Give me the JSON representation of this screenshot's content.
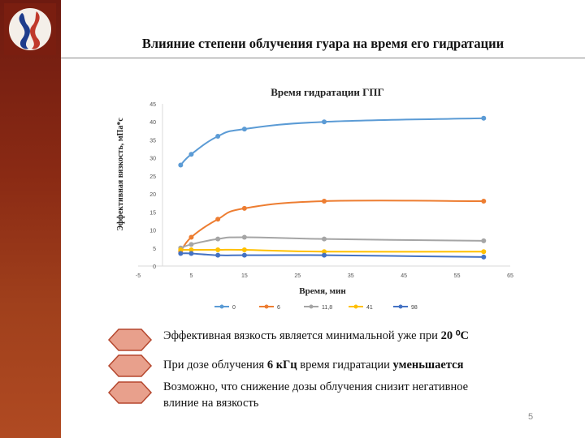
{
  "slide": {
    "title": "Влияние степени облучения гуара на время его гидратации",
    "page_number": "5",
    "colors": {
      "sidebar": "#8a2a14",
      "bullet": "#e8a08c"
    }
  },
  "bullets": [
    {
      "parts": [
        {
          "text": "Эффективная вязкость является минимальной уже при ",
          "bold": false
        },
        {
          "text": "20 ⁰С",
          "bold": true
        }
      ]
    },
    {
      "parts": [
        {
          "text": "При дозе облучения  ",
          "bold": false
        },
        {
          "text": "6 кГц",
          "bold": true
        },
        {
          "text": " время гидратации ",
          "bold": false
        },
        {
          "text": "уменьшается",
          "bold": true
        }
      ]
    },
    {
      "parts": [
        {
          "text": "Возможно, что снижение дозы облучения снизит негативное влиние на вязкость",
          "bold": false
        }
      ]
    }
  ],
  "chart_data": {
    "type": "line",
    "title": "Время гидратации ГПГ",
    "xlabel": "Время, мин",
    "ylabel": "Эффективная вязкость, мПа*с",
    "xlim": [
      -5,
      65
    ],
    "ylim": [
      0,
      45
    ],
    "xticks": [
      -5,
      5,
      15,
      25,
      35,
      45,
      55,
      65
    ],
    "yticks": [
      0,
      5,
      10,
      15,
      20,
      25,
      30,
      35,
      40,
      45
    ],
    "grid": false,
    "legend_position": "bottom",
    "series": [
      {
        "name": "0",
        "color": "#5b9bd5",
        "x": [
          3,
          5,
          10,
          15,
          30,
          60
        ],
        "y": [
          28,
          31,
          36,
          38,
          40,
          41
        ]
      },
      {
        "name": "6",
        "color": "#ed7d31",
        "x": [
          3,
          5,
          10,
          15,
          30,
          60
        ],
        "y": [
          4,
          8,
          13,
          16,
          18,
          18
        ]
      },
      {
        "name": "11,8",
        "color": "#a5a5a5",
        "x": [
          3,
          5,
          10,
          15,
          30,
          60
        ],
        "y": [
          5,
          6,
          7.5,
          8,
          7.5,
          7
        ]
      },
      {
        "name": "41",
        "color": "#ffc000",
        "x": [
          3,
          5,
          10,
          15,
          30,
          60
        ],
        "y": [
          4.5,
          4.5,
          4.5,
          4.5,
          4,
          4
        ]
      },
      {
        "name": "98",
        "color": "#4472c4",
        "x": [
          3,
          5,
          10,
          15,
          30,
          60
        ],
        "y": [
          3.5,
          3.5,
          3,
          3,
          3,
          2.5
        ]
      }
    ]
  }
}
